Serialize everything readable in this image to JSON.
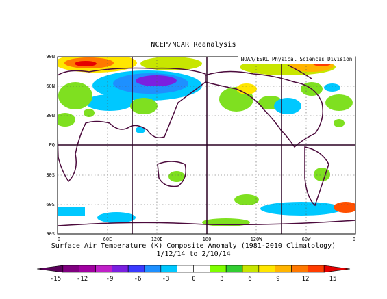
{
  "title": "NCEP/NCAR Reanalysis",
  "credit": "NOAA/ESRL Physical Sciences Division",
  "caption_line1": "Surface Air Temperature (K) Composite Anomaly (1981-2010 Climatology)",
  "caption_line2": "1/12/14  to 2/10/14",
  "lat_ticks": [
    "90N",
    "60N",
    "30N",
    "EQ",
    "30S",
    "60S",
    "90S"
  ],
  "lon_ticks": [
    "0",
    "60E",
    "120E",
    "180",
    "120W",
    "60W",
    "0"
  ],
  "colorbar": {
    "labels": [
      "-15",
      "-12",
      "-9",
      "-6",
      "-3",
      "0",
      "3",
      "6",
      "9",
      "12",
      "15"
    ],
    "colors": [
      "#5a005a",
      "#7f007f",
      "#a000a0",
      "#c020c8",
      "#7a20e0",
      "#3a3aff",
      "#1e90ff",
      "#00c8ff",
      "#ffffff",
      "#ffffff",
      "#7fff00",
      "#32cd32",
      "#c8e600",
      "#ffe600",
      "#ffb400",
      "#ff7800",
      "#ff3c00",
      "#e60000"
    ]
  },
  "colors": {
    "coastline": "#4b0a3c",
    "cold_blue": "#00c8ff",
    "warm_green": "#7fe020",
    "warm_yellow": "#ffe600",
    "warm_red": "#ff5000"
  }
}
